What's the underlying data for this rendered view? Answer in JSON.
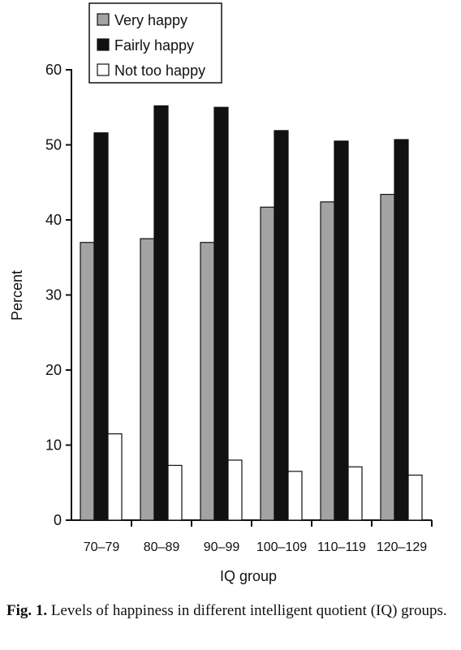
{
  "chart_data": {
    "type": "bar",
    "title": "",
    "xlabel": "IQ group",
    "ylabel": "Percent",
    "ylim": [
      0,
      60
    ],
    "yticks": [
      0,
      10,
      20,
      30,
      40,
      50,
      60
    ],
    "grid": false,
    "legend_position": "top-center",
    "categories": [
      "70–79",
      "80–89",
      "90–99",
      "100–109",
      "110–119",
      "120–129"
    ],
    "series": [
      {
        "name": "Very happy",
        "values": [
          37.0,
          37.5,
          37.0,
          41.7,
          42.4,
          43.4
        ],
        "color": "#a3a3a3"
      },
      {
        "name": "Fairly happy",
        "values": [
          51.6,
          55.2,
          55.0,
          51.9,
          50.5,
          50.7
        ],
        "color": "#111111"
      },
      {
        "name": "Not too happy",
        "values": [
          11.5,
          7.3,
          8.0,
          6.5,
          7.1,
          6.0
        ],
        "color": "#ffffff"
      }
    ]
  },
  "caption": {
    "label": "Fig. 1.",
    "text": " Levels of happiness in different intelligent quotient (IQ) groups."
  }
}
